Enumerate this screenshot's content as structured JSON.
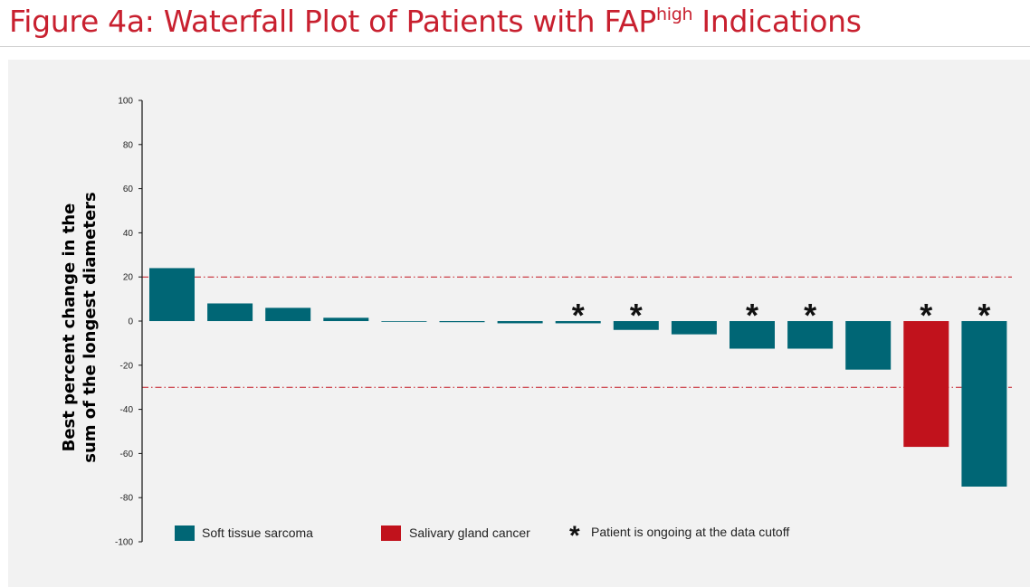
{
  "header": {
    "title": "Figure 4a: Waterfall Plot of Patients with FAP",
    "title_superscript": "high",
    "title_suffix": " Indications"
  },
  "chart_data": {
    "type": "bar",
    "ylabel_lines": [
      "Best percent change in the",
      "sum of the longest diameters"
    ],
    "ylim": [
      -100,
      100
    ],
    "yticks": [
      100,
      80,
      60,
      40,
      20,
      0,
      -20,
      -40,
      -60,
      -80,
      -100
    ],
    "reference_lines": [
      20,
      -30
    ],
    "grid": false,
    "series": [
      {
        "name": "Soft tissue sarcoma",
        "color": "#006675"
      },
      {
        "name": "Salivary gland cancer",
        "color": "#c1121c"
      }
    ],
    "bars": [
      {
        "value": 24,
        "series": 0,
        "ongoing": false
      },
      {
        "value": 8,
        "series": 0,
        "ongoing": false
      },
      {
        "value": 6,
        "series": 0,
        "ongoing": false
      },
      {
        "value": 1.5,
        "series": 0,
        "ongoing": false
      },
      {
        "value": 0,
        "series": 0,
        "ongoing": false
      },
      {
        "value": -0.3,
        "series": 0,
        "ongoing": false
      },
      {
        "value": -1,
        "series": 0,
        "ongoing": false
      },
      {
        "value": -1,
        "series": 0,
        "ongoing": true
      },
      {
        "value": -4,
        "series": 0,
        "ongoing": true
      },
      {
        "value": -6,
        "series": 0,
        "ongoing": false
      },
      {
        "value": -12.5,
        "series": 0,
        "ongoing": true
      },
      {
        "value": -12.5,
        "series": 0,
        "ongoing": true
      },
      {
        "value": -22,
        "series": 0,
        "ongoing": false
      },
      {
        "value": -57,
        "series": 1,
        "ongoing": true
      },
      {
        "value": -75,
        "series": 0,
        "ongoing": true
      }
    ],
    "legend": {
      "placement": "bottom",
      "ongoing_marker": "*",
      "ongoing_label": "Patient is ongoing at the data cutoff"
    }
  }
}
